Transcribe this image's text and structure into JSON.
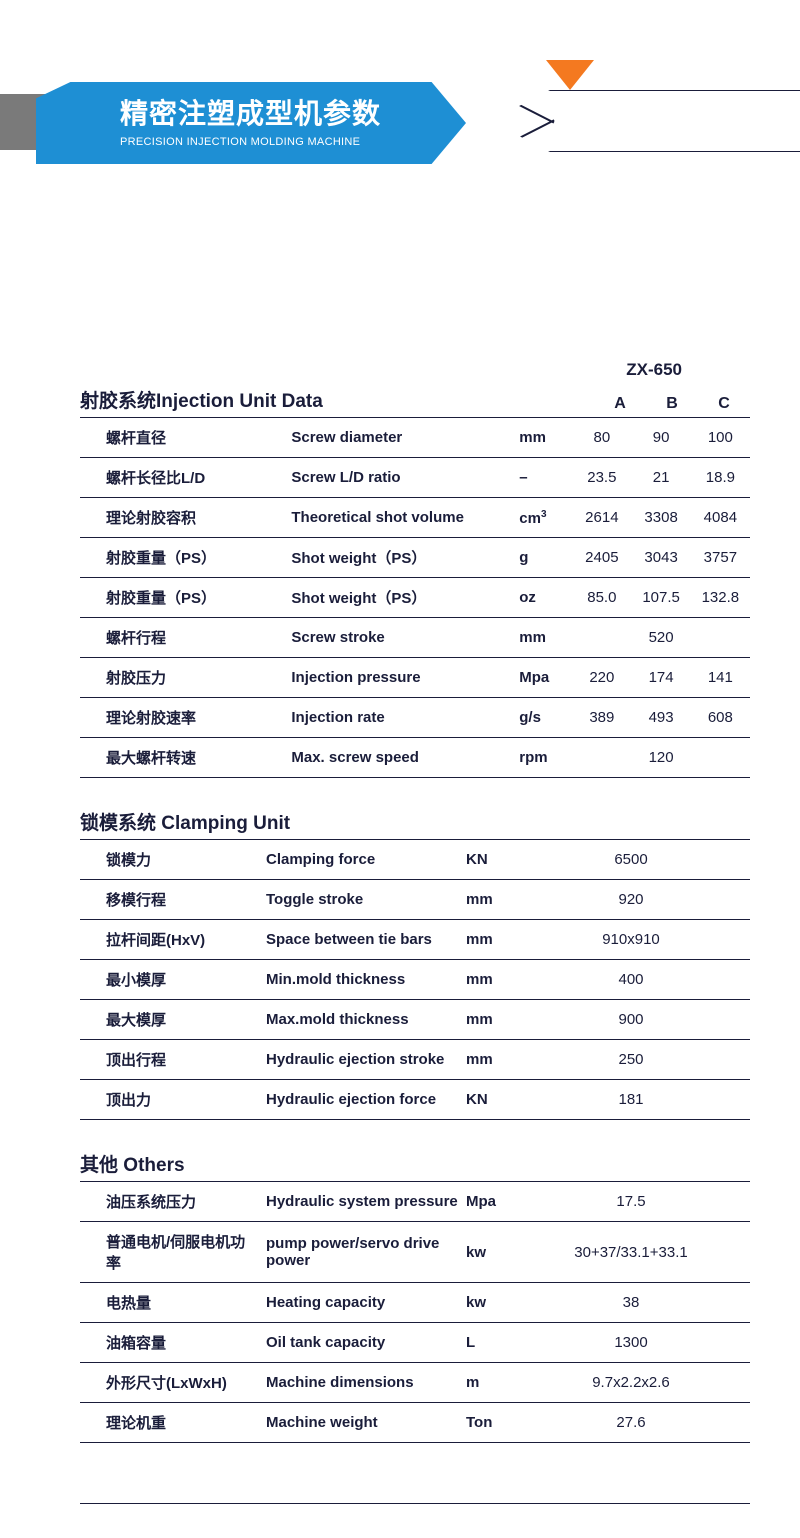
{
  "header": {
    "title_cn": "精密注塑成型机参数",
    "title_en": "PRECISION INJECTION MOLDING MACHINE"
  },
  "model": "ZX-650",
  "variants": [
    "A",
    "B",
    "C"
  ],
  "sections": [
    {
      "title_cn": "射胶系统",
      "title_en": "Injection Unit Data",
      "show_variants": true,
      "rows": [
        {
          "cn": "螺杆直径",
          "en": "Screw diameter",
          "unit": "mm",
          "vals": [
            "80",
            "90",
            "100"
          ]
        },
        {
          "cn": "螺杆长径比L/D",
          "en": "Screw L/D ratio",
          "unit": "–",
          "vals": [
            "23.5",
            "21",
            "18.9"
          ]
        },
        {
          "cn": "理论射胶容积",
          "en": "Theoretical shot volume",
          "unit": "cm³",
          "vals": [
            "2614",
            "3308",
            "4084"
          ]
        },
        {
          "cn": "射胶重量（PS）",
          "en": "Shot weight（PS）",
          "unit": "g",
          "vals": [
            "2405",
            "3043",
            "3757"
          ]
        },
        {
          "cn": "射胶重量（PS）",
          "en": "Shot weight（PS）",
          "unit": "oz",
          "vals": [
            "85.0",
            "107.5",
            "132.8"
          ]
        },
        {
          "cn": "螺杆行程",
          "en": "Screw stroke",
          "unit": "mm",
          "span": "520"
        },
        {
          "cn": "射胶压力",
          "en": "Injection pressure",
          "unit": "Mpa",
          "vals": [
            "220",
            "174",
            "141"
          ]
        },
        {
          "cn": "理论射胶速率",
          "en": "Injection rate",
          "unit": "g/s",
          "vals": [
            "389",
            "493",
            "608"
          ]
        },
        {
          "cn": "最大螺杆转速",
          "en": "Max. screw speed",
          "unit": "rpm",
          "span": "120"
        }
      ]
    },
    {
      "title_cn": "锁模系统",
      "title_en": "Clamping Unit",
      "show_variants": false,
      "rows": [
        {
          "cn": "锁模力",
          "en": "Clamping force",
          "unit": "KN",
          "span": "6500"
        },
        {
          "cn": "移模行程",
          "en": "Toggle stroke",
          "unit": "mm",
          "span": "920"
        },
        {
          "cn": "拉杆间距(HxV)",
          "en": "Space between tie bars",
          "unit": "mm",
          "span": "910x910"
        },
        {
          "cn": "最小模厚",
          "en": "Min.mold thickness",
          "unit": "mm",
          "span": "400"
        },
        {
          "cn": "最大模厚",
          "en": "Max.mold thickness",
          "unit": "mm",
          "span": "900"
        },
        {
          "cn": "顶出行程",
          "en": "Hydraulic ejection stroke",
          "unit": "mm",
          "span": "250"
        },
        {
          "cn": "顶出力",
          "en": "Hydraulic ejection force",
          "unit": "KN",
          "span": "181"
        }
      ]
    },
    {
      "title_cn": "其他",
      "title_en": "Others",
      "show_variants": false,
      "rows": [
        {
          "cn": "油压系统压力",
          "en": "Hydraulic system pressure",
          "unit": "Mpa",
          "span": "17.5"
        },
        {
          "cn": "普通电机/伺服电机功率",
          "en": "pump power/servo drive  power",
          "unit": "kw",
          "span": "30+37/33.1+33.1"
        },
        {
          "cn": "电热量",
          "en": "Heating capacity",
          "unit": "kw",
          "span": "38"
        },
        {
          "cn": "油箱容量",
          "en": "Oil tank capacity",
          "unit": "L",
          "span": "1300"
        },
        {
          "cn": "外形尺寸(LxWxH)",
          "en": "Machine dimensions",
          "unit": "m",
          "span": "9.7x2.2x2.6"
        },
        {
          "cn": "理论机重",
          "en": "Machine weight",
          "unit": "Ton",
          "span": "27.6"
        }
      ]
    }
  ],
  "colors": {
    "banner": "#1e8fd4",
    "accent": "#f47920",
    "text": "#1a1d3a",
    "grey": "#7a7a7a"
  }
}
